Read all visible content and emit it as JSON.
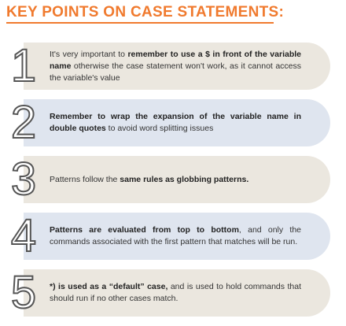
{
  "title": "KEY POINTS ON CASE STATEMENTS:",
  "items": [
    {
      "number": "1",
      "segments": [
        {
          "text": "It's very important to ",
          "bold": false
        },
        {
          "text": "remember to use a $ in front of the variable name",
          "bold": true
        },
        {
          "text": " otherwise the case statement won't work, as it cannot access the variable's value",
          "bold": false
        }
      ]
    },
    {
      "number": "2",
      "segments": [
        {
          "text": "Remember to wrap the expansion of the variable name in double quotes",
          "bold": true
        },
        {
          "text": " to avoid word splitting issues",
          "bold": false
        }
      ]
    },
    {
      "number": "3",
      "segments": [
        {
          "text": "Patterns follow the ",
          "bold": false
        },
        {
          "text": "same rules as globbing patterns.",
          "bold": true
        }
      ]
    },
    {
      "number": "4",
      "segments": [
        {
          "text": "Patterns are evaluated from top to bottom",
          "bold": true
        },
        {
          "text": ", and only the commands associated with the first pattern that matches will be run.",
          "bold": false
        }
      ]
    },
    {
      "number": "5",
      "segments": [
        {
          "text": "*) is used as a “default” case,",
          "bold": true
        },
        {
          "text": " and is used to hold commands that should run if no other cases match.",
          "bold": false
        }
      ]
    }
  ]
}
